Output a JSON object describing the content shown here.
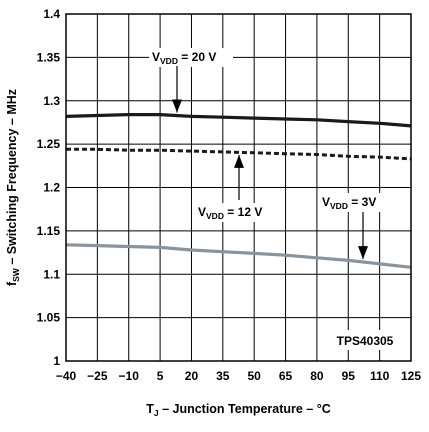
{
  "chart_data": {
    "type": "line",
    "xlabel": {
      "main": "T",
      "sub": "J",
      "rest": " – Junction Temperature – °C"
    },
    "ylabel": {
      "main": "f",
      "sub": "SW",
      "rest": " – Switching Frequency – MHz"
    },
    "xlim": [
      -40,
      125
    ],
    "ylim": [
      1,
      1.4
    ],
    "x_ticks": [
      "-40",
      "-25",
      "-10",
      "5",
      "20",
      "35",
      "50",
      "65",
      "80",
      "95",
      "110",
      "125"
    ],
    "x_tick_values": [
      -40,
      -25,
      -10,
      5,
      20,
      35,
      50,
      65,
      80,
      95,
      110,
      125
    ],
    "y_ticks": [
      "1",
      "1.05",
      "1.1",
      "1.15",
      "1.2",
      "1.25",
      "1.3",
      "1.35",
      "1.4"
    ],
    "y_tick_values": [
      1,
      1.05,
      1.1,
      1.15,
      1.2,
      1.25,
      1.3,
      1.35,
      1.4
    ],
    "grid": true,
    "series": [
      {
        "id": "vdd-20v",
        "color": "#1a1a1a",
        "style": "solid",
        "x": [
          -40,
          -25,
          -10,
          5,
          20,
          35,
          50,
          65,
          80,
          95,
          110,
          125
        ],
        "y": [
          1.282,
          1.283,
          1.284,
          1.284,
          1.282,
          1.281,
          1.28,
          1.279,
          1.278,
          1.276,
          1.274,
          1.271
        ]
      },
      {
        "id": "vdd-12v",
        "color": "#1a1a1a",
        "style": "dashed",
        "x": [
          -40,
          -25,
          -10,
          5,
          20,
          35,
          50,
          65,
          80,
          95,
          110,
          125
        ],
        "y": [
          1.244,
          1.244,
          1.243,
          1.243,
          1.242,
          1.241,
          1.24,
          1.239,
          1.238,
          1.236,
          1.235,
          1.233
        ]
      },
      {
        "id": "vdd-3v",
        "color": "#8a949c",
        "style": "solid",
        "x": [
          -40,
          -25,
          -10,
          5,
          20,
          35,
          50,
          65,
          80,
          95,
          110,
          125
        ],
        "y": [
          1.134,
          1.133,
          1.132,
          1.131,
          1.128,
          1.126,
          1.124,
          1.122,
          1.119,
          1.116,
          1.112,
          1.108
        ]
      }
    ],
    "annotations": [
      {
        "id": "vdd-20v",
        "prefix": "V",
        "sub": "VDD",
        "text": " = 20 V",
        "point_x": 13,
        "point_y": 1.283
      },
      {
        "id": "vdd-12v",
        "prefix": "V",
        "sub": "VDD",
        "text": " = 12 V",
        "point_x": 42,
        "point_y": 1.241
      },
      {
        "id": "vdd-3v",
        "prefix": "V",
        "sub": "VDD",
        "text": " = 3V",
        "point_x": 102,
        "point_y": 1.114
      }
    ],
    "part_label": "TPS40305"
  }
}
